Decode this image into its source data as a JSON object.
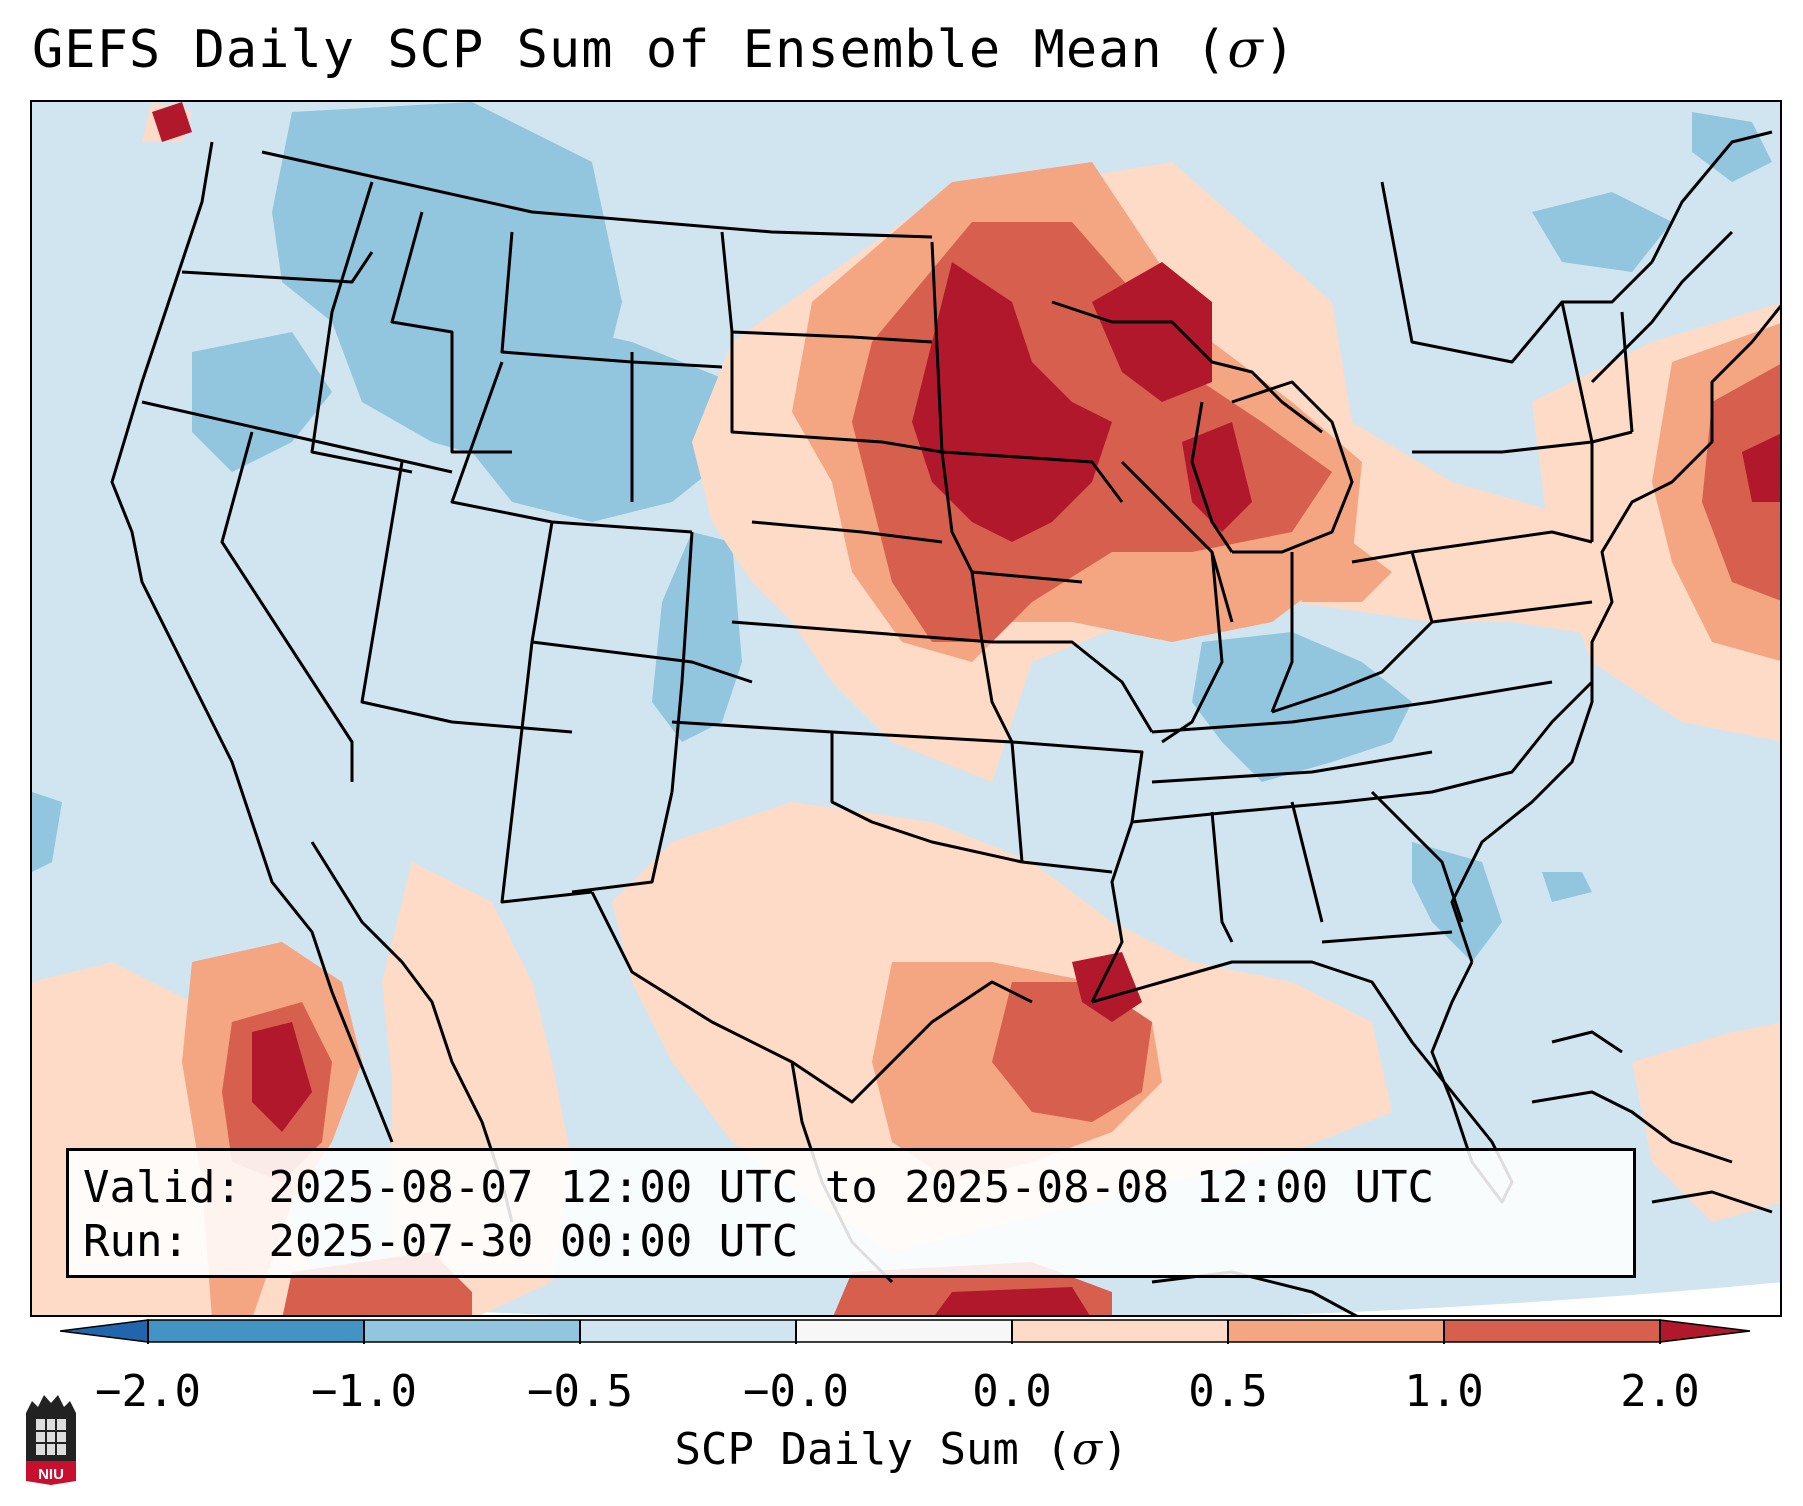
{
  "title": "GEFS Daily SCP Sum of Ensemble Mean (",
  "title_symbol": "σ",
  "title_close": ")",
  "info": {
    "valid_label": "Valid:",
    "valid_value": "2025-08-07 12:00 UTC to 2025-08-08 12:00 UTC",
    "run_label": "Run:",
    "run_value": "2025-07-30 00:00 UTC"
  },
  "colorbar": {
    "ticks": [
      "−2.0",
      "−1.0",
      "−0.5",
      "−0.0",
      "0.0",
      "0.5",
      "1.0",
      "2.0"
    ],
    "label": "SCP Daily Sum (",
    "label_symbol": "σ",
    "label_close": ")",
    "colors": [
      "#2166ac",
      "#4393c3",
      "#92c5de",
      "#d1e5f0",
      "#f7f7f7",
      "#fddbc7",
      "#f4a582",
      "#d6604d",
      "#b2182b"
    ]
  },
  "logo": {
    "text": "NIU"
  }
}
